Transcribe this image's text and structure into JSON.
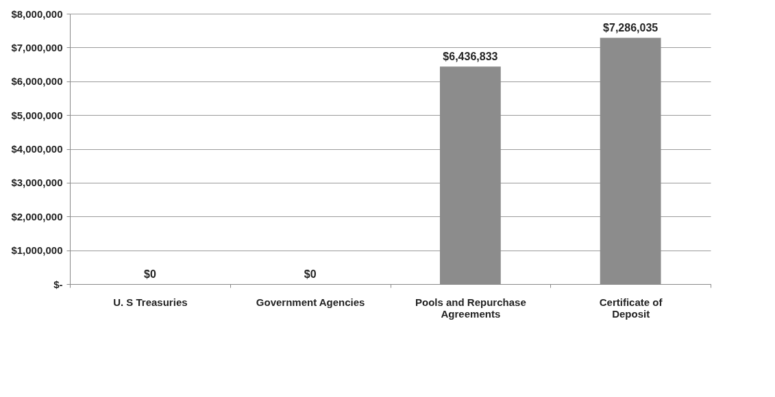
{
  "chart_data": {
    "type": "bar",
    "categories": [
      "U. S Treasuries",
      "Government Agencies",
      "Pools and Repurchase Agreements",
      "Certificate of Deposit"
    ],
    "values": [
      0,
      0,
      6436833,
      7286035
    ],
    "value_labels": [
      "$0",
      "$0",
      "$6,436,833",
      "$7,286,035"
    ],
    "color": "#8c8c8c",
    "ylim": [
      0,
      8000000
    ],
    "yticks": [
      {
        "value": 0,
        "label": "$-"
      },
      {
        "value": 1000000,
        "label": "$1,000,000"
      },
      {
        "value": 2000000,
        "label": "$2,000,000"
      },
      {
        "value": 3000000,
        "label": "$3,000,000"
      },
      {
        "value": 4000000,
        "label": "$4,000,000"
      },
      {
        "value": 5000000,
        "label": "$5,000,000"
      },
      {
        "value": 6000000,
        "label": "$6,000,000"
      },
      {
        "value": 7000000,
        "label": "$7,000,000"
      },
      {
        "value": 8000000,
        "label": "$8,000,000"
      }
    ],
    "grid": "y"
  }
}
